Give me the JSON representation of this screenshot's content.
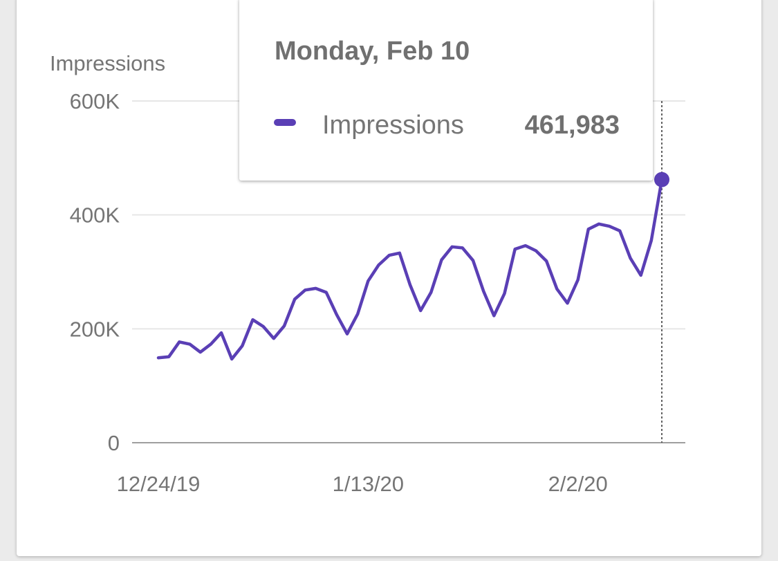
{
  "colors": {
    "series": "#5a3fb5",
    "grid": "#e6e6e6",
    "axis": "#9e9e9e",
    "text": "#757575"
  },
  "chart_data": {
    "type": "line",
    "title": "",
    "xlabel": "",
    "ylabel": "Impressions",
    "ylim": [
      0,
      600000
    ],
    "yticks": [
      0,
      200000,
      400000,
      600000
    ],
    "ytick_labels": [
      "0",
      "200K",
      "400K",
      "600K"
    ],
    "xticks": [
      "2019-12-24",
      "2020-01-13",
      "2020-02-02"
    ],
    "xtick_labels": [
      "12/24/19",
      "1/13/20",
      "2/2/20"
    ],
    "grid": true,
    "legend": "none",
    "series": [
      {
        "name": "Impressions",
        "x": [
          "2019-12-24",
          "2019-12-25",
          "2019-12-26",
          "2019-12-27",
          "2019-12-28",
          "2019-12-29",
          "2019-12-30",
          "2019-12-31",
          "2020-01-01",
          "2020-01-02",
          "2020-01-03",
          "2020-01-04",
          "2020-01-05",
          "2020-01-06",
          "2020-01-07",
          "2020-01-08",
          "2020-01-09",
          "2020-01-10",
          "2020-01-11",
          "2020-01-12",
          "2020-01-13",
          "2020-01-14",
          "2020-01-15",
          "2020-01-16",
          "2020-01-17",
          "2020-01-18",
          "2020-01-19",
          "2020-01-20",
          "2020-01-21",
          "2020-01-22",
          "2020-01-23",
          "2020-01-24",
          "2020-01-25",
          "2020-01-26",
          "2020-01-27",
          "2020-01-28",
          "2020-01-29",
          "2020-01-30",
          "2020-01-31",
          "2020-02-01",
          "2020-02-02",
          "2020-02-03",
          "2020-02-04",
          "2020-02-05",
          "2020-02-06",
          "2020-02-07",
          "2020-02-08",
          "2020-02-09",
          "2020-02-10"
        ],
        "values": [
          149000,
          151000,
          177000,
          173000,
          159000,
          173000,
          193000,
          147000,
          170000,
          216000,
          204000,
          183000,
          205000,
          252000,
          268000,
          271000,
          264000,
          225000,
          191000,
          226000,
          284000,
          312000,
          329000,
          333000,
          277000,
          232000,
          264000,
          321000,
          344000,
          342000,
          320000,
          266000,
          223000,
          262000,
          340000,
          346000,
          337000,
          319000,
          270000,
          245000,
          286000,
          375000,
          384000,
          380000,
          372000,
          324000,
          294000,
          355000,
          461983
        ]
      }
    ],
    "highlight": {
      "x": "2020-02-10",
      "label": "Monday, Feb 10",
      "series": "Impressions",
      "value": "461,983"
    }
  }
}
